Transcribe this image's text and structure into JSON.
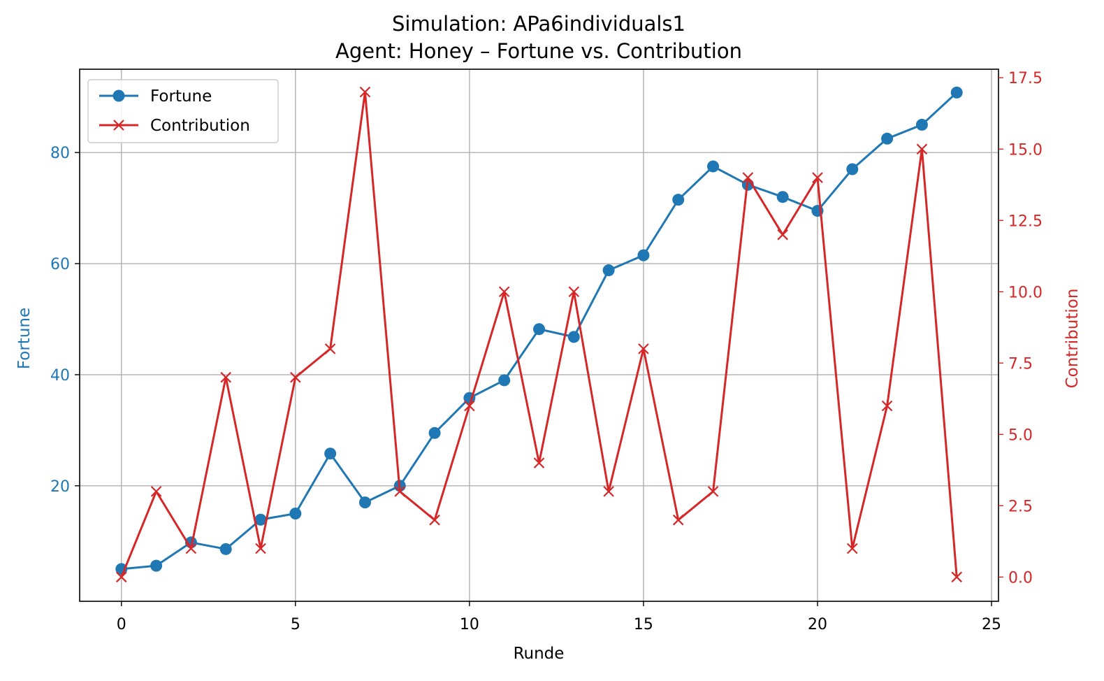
{
  "chart_data": {
    "type": "line",
    "title": "Simulation: APa6individuals1",
    "subtitle": "Agent: Honey – Fortune vs. Contribution",
    "xlabel": "Runde",
    "ylabel_left": "Fortune",
    "ylabel_right": "Contribution",
    "xlim": [
      -1.2,
      25.2
    ],
    "ylim_left": [
      -0.8,
      95
    ],
    "ylim_right": [
      -0.85,
      17.8
    ],
    "x_ticks": [
      0,
      5,
      10,
      15,
      20,
      25
    ],
    "y_left_ticks": [
      20,
      40,
      60,
      80
    ],
    "y_right_ticks": [
      "0.0",
      "2.5",
      "5.0",
      "7.5",
      "10.0",
      "12.5",
      "15.0",
      "17.5"
    ],
    "grid": true,
    "legend_position": "top-left",
    "x": [
      0,
      1,
      2,
      3,
      4,
      5,
      6,
      7,
      8,
      9,
      10,
      11,
      12,
      13,
      14,
      15,
      16,
      17,
      18,
      19,
      20,
      21,
      22,
      23,
      24
    ],
    "series": [
      {
        "name": "Fortune",
        "axis": "left",
        "marker": "circle",
        "color": "#1f77b4",
        "values": [
          5.0,
          5.6,
          9.8,
          8.6,
          13.9,
          15.0,
          25.8,
          17.0,
          20.0,
          29.5,
          35.8,
          39.0,
          48.2,
          46.8,
          58.8,
          61.5,
          71.5,
          77.5,
          74.2,
          72.0,
          69.5,
          77.0,
          82.5,
          85.0,
          90.8
        ]
      },
      {
        "name": "Contribution",
        "axis": "right",
        "marker": "x",
        "color": "#d62728",
        "values": [
          0,
          3,
          1,
          7,
          1,
          7,
          8,
          17,
          3,
          2,
          6,
          10,
          4,
          10,
          3,
          8,
          2,
          3,
          14,
          12,
          14,
          1,
          6,
          15,
          0
        ]
      }
    ]
  }
}
